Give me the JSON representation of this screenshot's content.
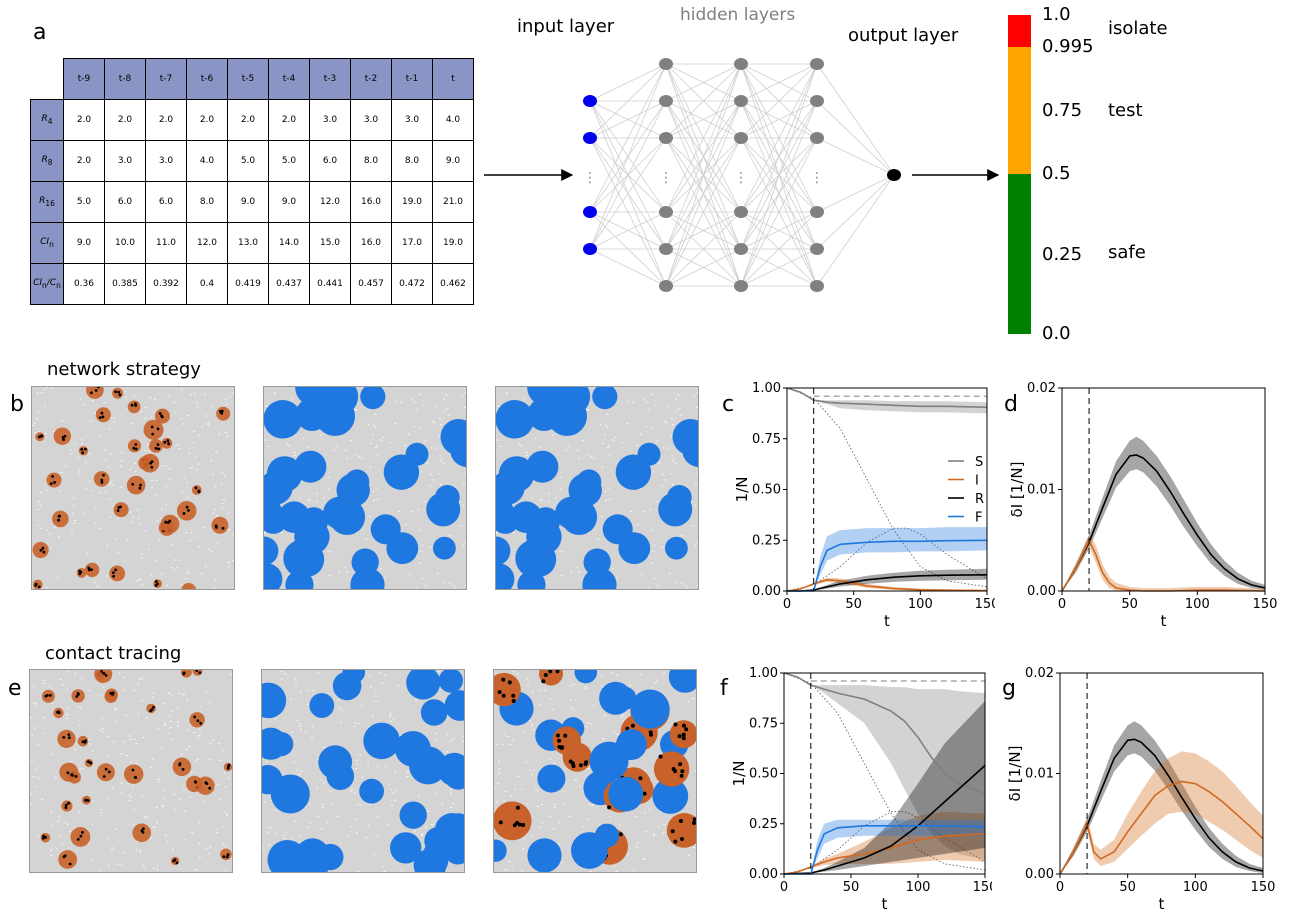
{
  "panel_labels": {
    "a": "a",
    "b": "b",
    "c": "c",
    "d": "d",
    "e": "e",
    "f": "f",
    "g": "g"
  },
  "table": {
    "columns": [
      "t-9",
      "t-8",
      "t-7",
      "t-6",
      "t-5",
      "t-4",
      "t-3",
      "t-2",
      "t-1",
      "t"
    ],
    "rows": [
      {
        "label_main": "R",
        "label_sub": "4",
        "values": [
          "2.0",
          "2.0",
          "2.0",
          "2.0",
          "2.0",
          "2.0",
          "3.0",
          "3.0",
          "3.0",
          "4.0"
        ]
      },
      {
        "label_main": "R",
        "label_sub": "8",
        "values": [
          "2.0",
          "3.0",
          "3.0",
          "4.0",
          "5.0",
          "5.0",
          "6.0",
          "8.0",
          "8.0",
          "9.0"
        ]
      },
      {
        "label_main": "R",
        "label_sub": "16",
        "values": [
          "5.0",
          "6.0",
          "6.0",
          "8.0",
          "9.0",
          "9.0",
          "12.0",
          "16.0",
          "19.0",
          "21.0"
        ]
      },
      {
        "label_main": "CI",
        "label_sub": "n",
        "values": [
          "9.0",
          "10.0",
          "11.0",
          "12.0",
          "13.0",
          "14.0",
          "15.0",
          "16.0",
          "17.0",
          "19.0"
        ]
      },
      {
        "label_main": "CI",
        "label_sub": "n",
        "label_mid": "/C",
        "label_sub2": "n",
        "values": [
          "0.36",
          "0.385",
          "0.392",
          "0.4",
          "0.419",
          "0.437",
          "0.441",
          "0.457",
          "0.472",
          "0.462"
        ]
      }
    ]
  },
  "network": {
    "input_label": "input layer",
    "hidden_label": "hidden layers",
    "output_label": "output layer",
    "input_color": "#0000ee",
    "hidden_color": "#808080",
    "output_color": "#000000",
    "ellipsis": "⋮"
  },
  "decision_scale": {
    "ticks": [
      "1.0",
      "0.995",
      "0.75",
      "0.5",
      "0.25",
      "0.0"
    ],
    "labels": {
      "isolate": "isolate",
      "test": "test",
      "safe": "safe"
    },
    "colors": {
      "isolate": "#ff0000",
      "test": "#ffa500",
      "safe": "#008000"
    }
  },
  "titles": {
    "network_strategy": "network strategy",
    "contact_tracing": "contact tracing"
  },
  "snapshots": {
    "background": "#d4d4d4",
    "infected_color": "#c8622a",
    "quarantined_color": "#1f77e0",
    "removed_color": "#000000"
  },
  "chart_data": [
    {
      "panel": "c",
      "type": "line",
      "xlabel": "t",
      "ylabel": "1/N",
      "xlim": [
        0,
        150
      ],
      "ylim": [
        0,
        1.0
      ],
      "xticks": [
        "0",
        "50",
        "100",
        "150"
      ],
      "yticks": [
        "0.00",
        "0.25",
        "0.50",
        "0.75",
        "1.00"
      ],
      "intervention_t": 20,
      "legend": [
        "S",
        "I",
        "R",
        "F"
      ],
      "series": [
        {
          "name": "S",
          "color": "#808080",
          "x": [
            0,
            10,
            20,
            30,
            40,
            60,
            80,
            100,
            120,
            150
          ],
          "y": [
            1.0,
            0.98,
            0.94,
            0.93,
            0.925,
            0.92,
            0.915,
            0.91,
            0.91,
            0.905
          ],
          "lo": [
            1.0,
            0.98,
            0.94,
            0.92,
            0.9,
            0.89,
            0.885,
            0.88,
            0.88,
            0.875
          ],
          "hi": [
            1.0,
            0.98,
            0.94,
            0.94,
            0.94,
            0.94,
            0.935,
            0.935,
            0.935,
            0.93
          ]
        },
        {
          "name": "I",
          "color": "#d2691e",
          "x": [
            0,
            10,
            20,
            30,
            40,
            60,
            80,
            100,
            120,
            150
          ],
          "y": [
            0.0,
            0.01,
            0.035,
            0.055,
            0.05,
            0.025,
            0.012,
            0.006,
            0.004,
            0.002
          ],
          "lo": [
            0.0,
            0.01,
            0.03,
            0.045,
            0.038,
            0.015,
            0.006,
            0.002,
            0.001,
            0.0
          ],
          "hi": [
            0.0,
            0.01,
            0.04,
            0.065,
            0.062,
            0.035,
            0.02,
            0.012,
            0.008,
            0.005
          ]
        },
        {
          "name": "R",
          "color": "#000000",
          "x": [
            0,
            10,
            20,
            30,
            40,
            60,
            80,
            100,
            120,
            150
          ],
          "y": [
            0.0,
            0.0,
            0.005,
            0.02,
            0.035,
            0.055,
            0.068,
            0.075,
            0.078,
            0.08
          ],
          "lo": [
            0.0,
            0.0,
            0.003,
            0.012,
            0.022,
            0.035,
            0.045,
            0.05,
            0.052,
            0.055
          ],
          "hi": [
            0.0,
            0.0,
            0.007,
            0.03,
            0.05,
            0.075,
            0.09,
            0.1,
            0.105,
            0.11
          ]
        },
        {
          "name": "F",
          "color": "#1f77e0",
          "x": [
            0,
            10,
            20,
            25,
            30,
            40,
            60,
            80,
            100,
            120,
            150
          ],
          "y": [
            0.0,
            0.0,
            0.0,
            0.12,
            0.2,
            0.23,
            0.24,
            0.245,
            0.245,
            0.248,
            0.25
          ],
          "lo": [
            0.0,
            0.0,
            0.0,
            0.08,
            0.15,
            0.18,
            0.19,
            0.19,
            0.195,
            0.195,
            0.2
          ],
          "hi": [
            0.0,
            0.0,
            0.0,
            0.17,
            0.27,
            0.3,
            0.31,
            0.31,
            0.31,
            0.315,
            0.315
          ]
        }
      ],
      "reference": [
        {
          "name": "S_unmitigated",
          "x": [
            0,
            20,
            40,
            60,
            80,
            100,
            120,
            150
          ],
          "y": [
            1.0,
            0.95,
            0.8,
            0.55,
            0.3,
            0.12,
            0.05,
            0.02
          ]
        },
        {
          "name": "I_unmitigated",
          "x": [
            0,
            20,
            40,
            60,
            80,
            90,
            100,
            120,
            150
          ],
          "y": [
            0.0,
            0.03,
            0.12,
            0.24,
            0.31,
            0.31,
            0.28,
            0.18,
            0.06
          ]
        },
        {
          "name": "ceiling",
          "x": [
            20,
            150
          ],
          "y": [
            0.96,
            0.96
          ]
        }
      ]
    },
    {
      "panel": "d",
      "type": "line",
      "xlabel": "t",
      "ylabel": "δI [1/N]",
      "xlim": [
        0,
        150
      ],
      "ylim": [
        0,
        0.02
      ],
      "xticks": [
        "0",
        "50",
        "100",
        "150"
      ],
      "yticks": [
        "0.00",
        "0.01",
        "0.02"
      ],
      "intervention_t": 20,
      "series": [
        {
          "name": "unmitigated",
          "color": "#000000",
          "x": [
            0,
            10,
            20,
            30,
            40,
            50,
            55,
            60,
            70,
            80,
            90,
            100,
            110,
            120,
            130,
            140,
            150
          ],
          "y": [
            0.0,
            0.0022,
            0.0048,
            0.0082,
            0.0115,
            0.0133,
            0.0134,
            0.0131,
            0.0118,
            0.0098,
            0.0076,
            0.0055,
            0.0036,
            0.0022,
            0.0012,
            0.0006,
            0.0003
          ],
          "lo": [
            0.0,
            0.0018,
            0.0042,
            0.0072,
            0.0102,
            0.0118,
            0.012,
            0.0117,
            0.0103,
            0.0084,
            0.0063,
            0.0044,
            0.0027,
            0.0015,
            0.0007,
            0.0003,
            0.0001
          ],
          "hi": [
            0.0,
            0.0026,
            0.0055,
            0.0092,
            0.0128,
            0.0148,
            0.0152,
            0.0148,
            0.0133,
            0.0113,
            0.009,
            0.0067,
            0.0046,
            0.003,
            0.0018,
            0.001,
            0.0006
          ]
        },
        {
          "name": "network",
          "color": "#d2691e",
          "x": [
            0,
            10,
            20,
            25,
            30,
            35,
            40,
            50,
            60,
            80,
            100,
            120,
            150
          ],
          "y": [
            0.0,
            0.0022,
            0.005,
            0.0036,
            0.0018,
            0.0008,
            0.0003,
            0.0001,
            0.0,
            0.0,
            0.0001,
            0.0001,
            0.0
          ],
          "lo": [
            0.0,
            0.0018,
            0.0044,
            0.0028,
            0.0011,
            0.0003,
            0.0,
            0.0,
            0.0,
            0.0,
            0.0,
            0.0,
            0.0
          ],
          "hi": [
            0.0,
            0.0026,
            0.0056,
            0.0045,
            0.0026,
            0.0014,
            0.0008,
            0.0004,
            0.0003,
            0.0003,
            0.0004,
            0.0004,
            0.0002
          ]
        }
      ]
    },
    {
      "panel": "f",
      "type": "line",
      "xlabel": "t",
      "ylabel": "1/N",
      "xlim": [
        0,
        150
      ],
      "ylim": [
        0,
        1.0
      ],
      "xticks": [
        "0",
        "50",
        "100",
        "150"
      ],
      "yticks": [
        "0.00",
        "0.25",
        "0.50",
        "0.75",
        "1.00"
      ],
      "intervention_t": 20,
      "series": [
        {
          "name": "S",
          "color": "#808080",
          "x": [
            0,
            10,
            20,
            30,
            40,
            60,
            80,
            90,
            100,
            110,
            120,
            130,
            150
          ],
          "y": [
            1.0,
            0.98,
            0.94,
            0.92,
            0.9,
            0.87,
            0.81,
            0.76,
            0.68,
            0.58,
            0.5,
            0.45,
            0.4
          ],
          "lo": [
            1.0,
            0.98,
            0.94,
            0.9,
            0.85,
            0.75,
            0.55,
            0.42,
            0.3,
            0.2,
            0.14,
            0.1,
            0.07
          ],
          "hi": [
            1.0,
            0.98,
            0.94,
            0.94,
            0.94,
            0.94,
            0.93,
            0.93,
            0.92,
            0.92,
            0.92,
            0.91,
            0.9
          ]
        },
        {
          "name": "I",
          "color": "#d2691e",
          "x": [
            0,
            10,
            20,
            30,
            40,
            60,
            80,
            100,
            120,
            150
          ],
          "y": [
            0.0,
            0.01,
            0.035,
            0.06,
            0.08,
            0.1,
            0.13,
            0.17,
            0.19,
            0.2
          ],
          "lo": [
            0.0,
            0.01,
            0.03,
            0.045,
            0.05,
            0.05,
            0.05,
            0.06,
            0.07,
            0.06
          ],
          "hi": [
            0.0,
            0.01,
            0.04,
            0.075,
            0.1,
            0.16,
            0.23,
            0.29,
            0.31,
            0.3
          ]
        },
        {
          "name": "R",
          "color": "#000000",
          "x": [
            0,
            20,
            30,
            40,
            60,
            80,
            100,
            120,
            150
          ],
          "y": [
            0.0,
            0.005,
            0.02,
            0.04,
            0.08,
            0.14,
            0.24,
            0.36,
            0.54
          ],
          "lo": [
            0.0,
            0.003,
            0.012,
            0.02,
            0.04,
            0.06,
            0.08,
            0.1,
            0.13
          ],
          "hi": [
            0.0,
            0.007,
            0.03,
            0.06,
            0.13,
            0.26,
            0.45,
            0.65,
            0.86
          ]
        },
        {
          "name": "F",
          "color": "#1f77e0",
          "x": [
            0,
            20,
            25,
            30,
            40,
            60,
            80,
            100,
            120,
            150
          ],
          "y": [
            0.0,
            0.0,
            0.12,
            0.2,
            0.23,
            0.24,
            0.24,
            0.24,
            0.24,
            0.235
          ],
          "lo": [
            0.0,
            0.0,
            0.08,
            0.15,
            0.18,
            0.19,
            0.19,
            0.19,
            0.19,
            0.19
          ],
          "hi": [
            0.0,
            0.0,
            0.17,
            0.25,
            0.27,
            0.27,
            0.27,
            0.27,
            0.27,
            0.27
          ]
        }
      ],
      "reference": [
        {
          "name": "S_unmitigated",
          "x": [
            0,
            20,
            40,
            60,
            80,
            100,
            120,
            150
          ],
          "y": [
            1.0,
            0.95,
            0.8,
            0.55,
            0.3,
            0.12,
            0.05,
            0.02
          ]
        },
        {
          "name": "I_unmitigated",
          "x": [
            0,
            20,
            40,
            60,
            80,
            90,
            100,
            120,
            150
          ],
          "y": [
            0.0,
            0.03,
            0.12,
            0.24,
            0.31,
            0.31,
            0.28,
            0.18,
            0.06
          ]
        },
        {
          "name": "ceiling",
          "x": [
            20,
            150
          ],
          "y": [
            0.96,
            0.96
          ]
        }
      ]
    },
    {
      "panel": "g",
      "type": "line",
      "xlabel": "t",
      "ylabel": "δI [1/N]",
      "xlim": [
        0,
        150
      ],
      "ylim": [
        0,
        0.02
      ],
      "xticks": [
        "0",
        "50",
        "100",
        "150"
      ],
      "yticks": [
        "0.00",
        "0.01",
        "0.02"
      ],
      "intervention_t": 20,
      "series": [
        {
          "name": "unmitigated",
          "color": "#000000",
          "x": [
            0,
            10,
            20,
            30,
            40,
            50,
            55,
            60,
            70,
            80,
            90,
            100,
            110,
            120,
            130,
            140,
            150
          ],
          "y": [
            0.0,
            0.0022,
            0.0048,
            0.0082,
            0.0115,
            0.0133,
            0.0134,
            0.0131,
            0.0118,
            0.0098,
            0.0076,
            0.0055,
            0.0036,
            0.0022,
            0.0012,
            0.0006,
            0.0003
          ],
          "lo": [
            0.0,
            0.0018,
            0.0042,
            0.0072,
            0.0102,
            0.0118,
            0.012,
            0.0117,
            0.0103,
            0.0084,
            0.0063,
            0.0044,
            0.0027,
            0.0015,
            0.0007,
            0.0003,
            0.0001
          ],
          "hi": [
            0.0,
            0.0026,
            0.0055,
            0.0092,
            0.0128,
            0.0148,
            0.0152,
            0.0148,
            0.0133,
            0.0113,
            0.009,
            0.0067,
            0.0046,
            0.003,
            0.0018,
            0.001,
            0.0006
          ]
        },
        {
          "name": "contact_tracing",
          "color": "#d2691e",
          "x": [
            0,
            10,
            20,
            25,
            30,
            40,
            50,
            60,
            70,
            80,
            90,
            100,
            110,
            120,
            130,
            140,
            150
          ],
          "y": [
            0.0,
            0.0022,
            0.005,
            0.0022,
            0.0015,
            0.0022,
            0.0042,
            0.006,
            0.0078,
            0.0088,
            0.0092,
            0.009,
            0.0082,
            0.0072,
            0.006,
            0.0048,
            0.0035
          ],
          "lo": [
            0.0,
            0.0018,
            0.0044,
            0.0015,
            0.0008,
            0.0012,
            0.0025,
            0.0038,
            0.005,
            0.006,
            0.0062,
            0.006,
            0.0052,
            0.0044,
            0.0034,
            0.0024,
            0.0016
          ],
          "hi": [
            0.0,
            0.0026,
            0.0056,
            0.003,
            0.0024,
            0.0034,
            0.006,
            0.0082,
            0.0102,
            0.0115,
            0.0122,
            0.012,
            0.0112,
            0.0102,
            0.0088,
            0.0072,
            0.0058
          ]
        }
      ]
    }
  ]
}
